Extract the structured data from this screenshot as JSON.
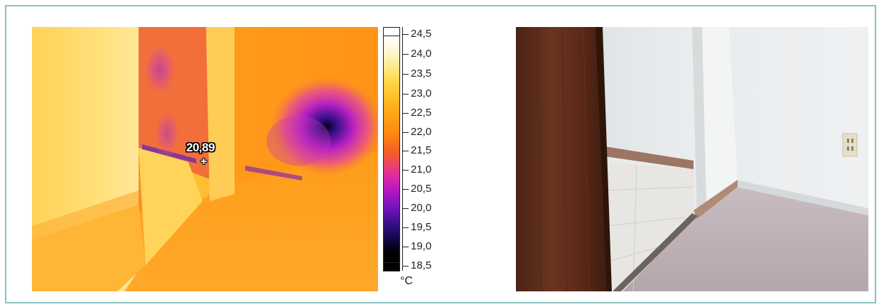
{
  "thermal_image": {
    "spot_readout": "20,89",
    "crosshair_glyph": "+",
    "unit": "°C",
    "scale_labels": [
      "24,5",
      "24,0",
      "23,5",
      "23,0",
      "22,5",
      "22,0",
      "21,5",
      "21,0",
      "20,5",
      "20,0",
      "19,5",
      "19,0",
      "18,5"
    ],
    "palette": [
      "#ffffff",
      "#ffd84a",
      "#ff8a10",
      "#e2309a",
      "#6a14b8",
      "#0c0330",
      "#000000"
    ]
  },
  "visible_photo": {
    "subject": "closet-doorway-photo"
  },
  "colors": {
    "frame_border": "#8cc3c3"
  }
}
